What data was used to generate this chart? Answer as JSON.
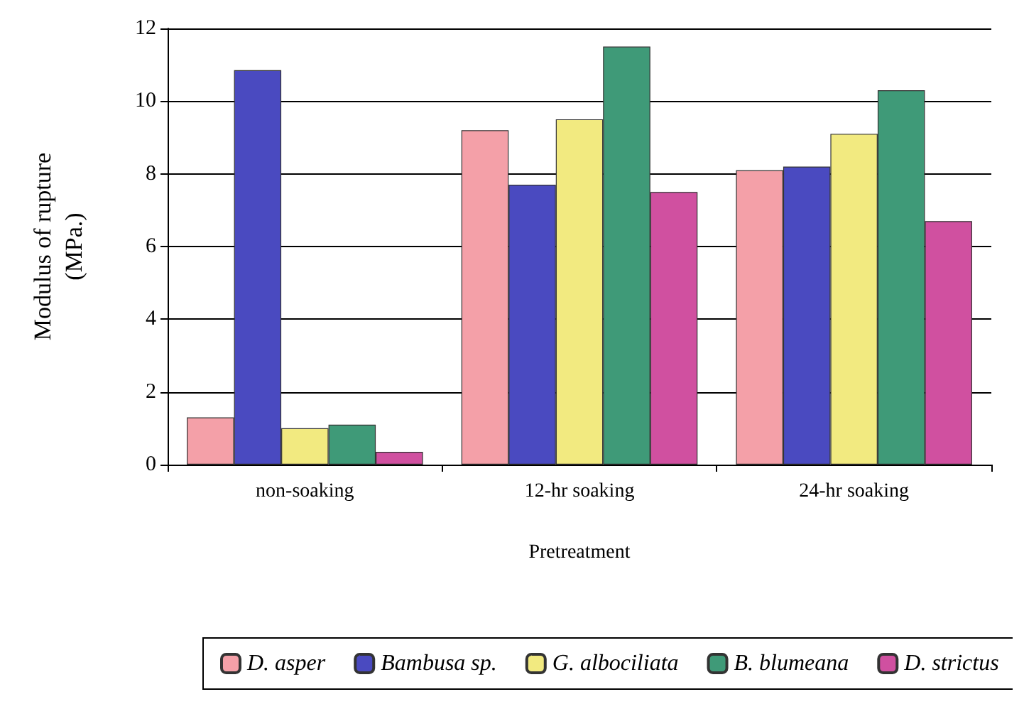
{
  "chart_data": {
    "type": "bar",
    "xlabel": "Pretreatment",
    "ylabel": "Modulus of rupture\n(MPa.)",
    "categories": [
      "non-soaking",
      "12-hr soaking",
      "24-hr soaking"
    ],
    "series": [
      {
        "name": "D. asper",
        "color": "#f4a0a8",
        "values": [
          1.3,
          9.2,
          8.1
        ]
      },
      {
        "name": "Bambusa sp.",
        "color": "#4a4ac0",
        "values": [
          10.85,
          7.7,
          8.2
        ]
      },
      {
        "name": "G. albociliata",
        "color": "#f2ea80",
        "values": [
          1.0,
          9.5,
          9.1
        ]
      },
      {
        "name": "B. blumeana",
        "color": "#3f9a78",
        "values": [
          1.1,
          11.5,
          10.3
        ]
      },
      {
        "name": "D. strictus",
        "color": "#d050a0",
        "values": [
          0.35,
          7.5,
          6.7
        ]
      }
    ],
    "ylim": [
      0,
      12
    ],
    "yticks": [
      0,
      2,
      4,
      6,
      8,
      10,
      12
    ],
    "grid": "y",
    "legend": "bottom"
  }
}
